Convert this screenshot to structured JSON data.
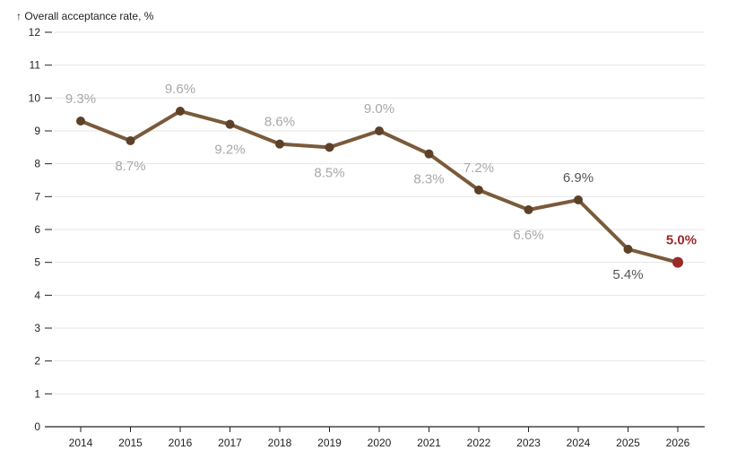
{
  "chart_data": {
    "type": "line",
    "ylabel": "↑ Overall acceptance rate, %",
    "ylim": [
      0,
      12
    ],
    "yticks": [
      "0",
      "1",
      "2",
      "3",
      "4",
      "5",
      "6",
      "7",
      "8",
      "9",
      "10",
      "11",
      "12"
    ],
    "x": [
      "2014",
      "2015",
      "2016",
      "2017",
      "2018",
      "2019",
      "2020",
      "2021",
      "2022",
      "2023",
      "2024",
      "2025",
      "2026"
    ],
    "values": [
      9.3,
      8.7,
      9.6,
      9.2,
      8.6,
      8.5,
      9.0,
      8.3,
      7.2,
      6.6,
      6.9,
      5.4,
      5.0
    ],
    "data_labels": [
      "9.3%",
      "8.7%",
      "9.6%",
      "9.2%",
      "8.6%",
      "8.5%",
      "9.0%",
      "8.3%",
      "7.2%",
      "6.6%",
      "6.9%",
      "5.4%",
      "5.0%"
    ],
    "label_positions": [
      "above",
      "below",
      "above",
      "below",
      "above",
      "below",
      "above",
      "below",
      "above",
      "below",
      "above",
      "below",
      "above"
    ],
    "grid": true,
    "colors": {
      "line": "#7a5a3a",
      "point": "#5c4128",
      "highlight_point": "#9b2a2a",
      "label_muted": "#a8a8a8",
      "label_recent": "#555555",
      "label_highlight": "#9b2a2a"
    }
  }
}
